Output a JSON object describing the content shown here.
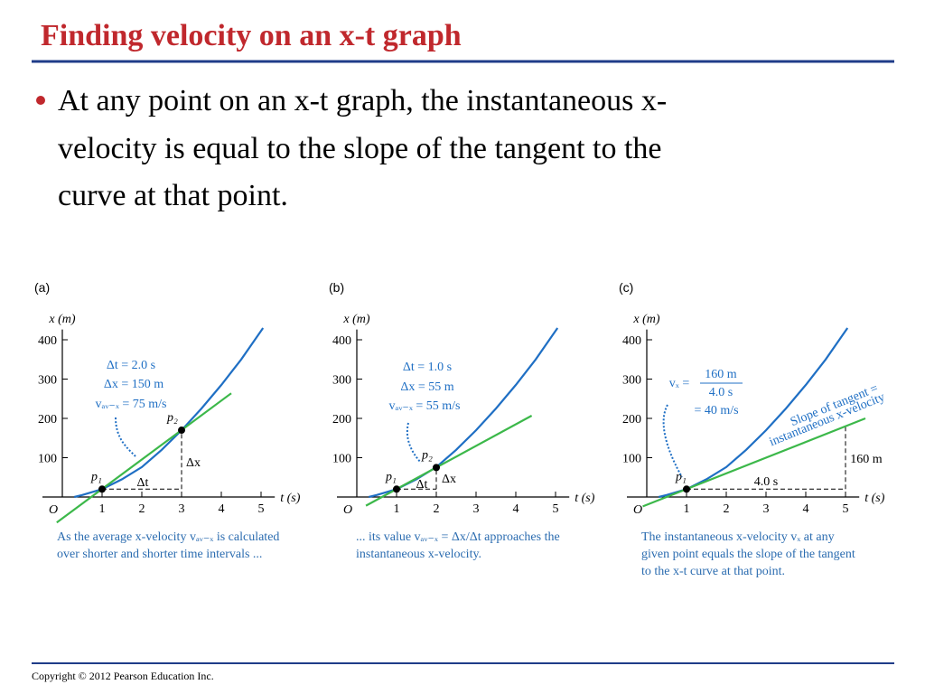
{
  "title": "Finding velocity on an x-t graph",
  "bullet": [
    "At any point on an x-t graph, the instantaneous x-",
    "velocity is equal to the slope of the tangent to the",
    "curve at that point."
  ],
  "chart_data": [
    {
      "type": "line",
      "label": "(a)",
      "x_label": "t (s)",
      "y_label": "x (m)",
      "origin_label": "O",
      "xlim": [
        -0.2,
        5.8
      ],
      "ylim": [
        -70,
        440
      ],
      "xticks": [
        1,
        2,
        3,
        4,
        5
      ],
      "yticks": [
        100,
        200,
        300,
        400
      ],
      "series": [
        {
          "color": "#1f6fc4",
          "x": [
            0.3,
            0.5,
            1,
            1.5,
            2,
            2.5,
            3,
            3.5,
            4,
            4.5,
            5.05
          ],
          "values": [
            0,
            5,
            20,
            45,
            76,
            120,
            170,
            225,
            285,
            350,
            430
          ]
        },
        {
          "color": "#3cb84a",
          "x": [
            -0.14,
            4.25
          ],
          "values": [
            -65,
            264
          ]
        }
      ],
      "points": [
        {
          "label": "p₁",
          "x": 1,
          "y": 20
        },
        {
          "label": "p₂",
          "x": 3,
          "y": 170
        }
      ],
      "dashed": {
        "x": [
          1,
          3
        ],
        "y": [
          20,
          170
        ]
      },
      "annotations": [
        "Δt = 2.0 s",
        "Δx = 150 m",
        "vₐᵥ₋ₓ = 75 m/s",
        "Δt",
        "Δx"
      ],
      "caption": [
        "As the average x-velocity vₐᵥ₋ₓ is calculated",
        "over shorter and shorter time intervals ..."
      ]
    },
    {
      "type": "line",
      "label": "(b)",
      "x_label": "t (s)",
      "y_label": "x (m)",
      "origin_label": "O",
      "xlim": [
        -0.2,
        5.8
      ],
      "ylim": [
        -70,
        440
      ],
      "xticks": [
        1,
        2,
        3,
        4,
        5
      ],
      "yticks": [
        100,
        200,
        300,
        400
      ],
      "series": [
        {
          "color": "#1f6fc4",
          "x": [
            0.3,
            0.5,
            1,
            1.5,
            2,
            2.5,
            3,
            3.5,
            4,
            4.5,
            5.05
          ],
          "values": [
            0,
            5,
            20,
            45,
            76,
            120,
            170,
            225,
            285,
            350,
            430
          ]
        },
        {
          "color": "#3cb84a",
          "x": [
            0.23,
            4.4
          ],
          "values": [
            -22,
            207
          ]
        }
      ],
      "points": [
        {
          "label": "p₁",
          "x": 1,
          "y": 20
        },
        {
          "label": "p₂",
          "x": 2,
          "y": 75
        }
      ],
      "dashed": {
        "x": [
          1,
          2
        ],
        "y": [
          20,
          75
        ]
      },
      "annotations": [
        "Δt = 1.0 s",
        "Δx = 55 m",
        "vₐᵥ₋ₓ = 55 m/s",
        "Δt",
        "Δx"
      ],
      "caption": [
        "... its value vₐᵥ₋ₓ = Δx/Δt approaches the",
        "instantaneous x-velocity."
      ]
    },
    {
      "type": "line",
      "label": "(c)",
      "x_label": "t (s)",
      "y_label": "x (m)",
      "origin_label": "O",
      "xlim": [
        -0.2,
        5.8
      ],
      "ylim": [
        -70,
        440
      ],
      "xticks": [
        1,
        2,
        3,
        4,
        5
      ],
      "yticks": [
        100,
        200,
        300,
        400
      ],
      "series": [
        {
          "color": "#1f6fc4",
          "x": [
            0.3,
            0.5,
            1,
            1.5,
            2,
            2.5,
            3,
            3.5,
            4,
            4.5,
            5.05
          ],
          "values": [
            0,
            5,
            20,
            45,
            76,
            120,
            170,
            225,
            285,
            350,
            430
          ]
        },
        {
          "color": "#3cb84a",
          "x": [
            -0.1,
            5.5
          ],
          "values": [
            -24,
            200
          ]
        }
      ],
      "points": [
        {
          "label": "p₁",
          "x": 1,
          "y": 20
        }
      ],
      "dashed": {
        "x": [
          1,
          5
        ],
        "y": [
          20,
          180
        ]
      },
      "annotations": [
        "vₓ =",
        "160 m",
        "4.0 s",
        "= 40 m/s",
        "Slope of tangent =",
        "instantaneous x-velocity",
        "4.0 s",
        "160 m"
      ],
      "caption": [
        "The instantaneous x-velocity vₓ at any",
        "given point equals the slope of the tangent",
        "to the x-t curve at that point."
      ]
    }
  ],
  "footer": "Copyright © 2012 Pearson Education Inc."
}
